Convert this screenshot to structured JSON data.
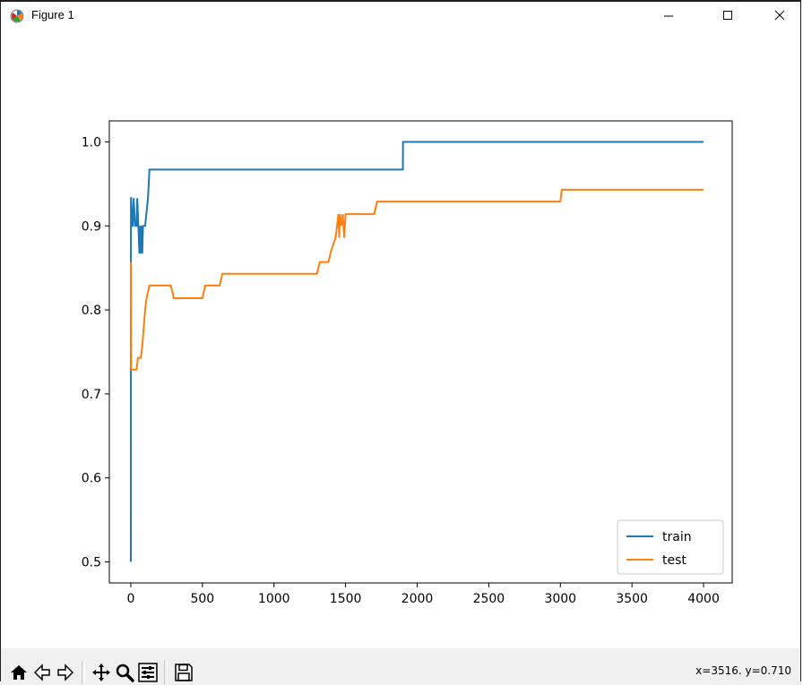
{
  "window": {
    "title": "Figure 1",
    "controls": {
      "minimize": "minimize",
      "maximize": "maximize",
      "close": "close"
    }
  },
  "toolbar": {
    "buttons": [
      "home-icon",
      "back-icon",
      "forward-icon",
      "pan-icon",
      "zoom-icon",
      "configure-subplots-icon",
      "save-icon"
    ],
    "coords_text": "x=3516. y=0.710"
  },
  "chart_data": {
    "type": "line",
    "xlim": [
      -150,
      4200
    ],
    "ylim": [
      0.475,
      1.025
    ],
    "xticks": [
      0,
      500,
      1000,
      1500,
      2000,
      2500,
      3000,
      3500,
      4000
    ],
    "yticks": [
      0.5,
      0.6,
      0.7,
      0.8,
      0.9,
      1.0
    ],
    "xtick_labels": [
      "0",
      "500",
      "1000",
      "1500",
      "2000",
      "2500",
      "3000",
      "3500",
      "4000"
    ],
    "ytick_labels": [
      "0.5",
      "0.6",
      "0.7",
      "0.8",
      "0.9",
      "1.0"
    ],
    "legend": {
      "position": "lower right"
    },
    "grid": false,
    "series": [
      {
        "name": "train",
        "color": "#1f77b4",
        "x": [
          0,
          1,
          2,
          10,
          14,
          20,
          30,
          40,
          45,
          60,
          62,
          70,
          72,
          80,
          85,
          100,
          120,
          130,
          1900,
          1901,
          4000
        ],
        "y": [
          0.5,
          0.933,
          0.933,
          0.9,
          0.9,
          0.933,
          0.9,
          0.9,
          0.933,
          0.867,
          0.9,
          0.867,
          0.9,
          0.867,
          0.9,
          0.9,
          0.933,
          0.967,
          0.967,
          1.0,
          1.0
        ]
      },
      {
        "name": "test",
        "color": "#ff7f0e",
        "x": [
          0,
          2,
          4,
          40,
          50,
          70,
          80,
          100,
          110,
          130,
          280,
          300,
          500,
          520,
          620,
          640,
          1300,
          1320,
          1380,
          1400,
          1430,
          1440,
          1450,
          1455,
          1460,
          1470,
          1480,
          1490,
          1500,
          1700,
          1720,
          3000,
          3010,
          4000
        ],
        "y": [
          0.857,
          0.729,
          0.729,
          0.729,
          0.743,
          0.743,
          0.757,
          0.8,
          0.814,
          0.829,
          0.829,
          0.814,
          0.814,
          0.829,
          0.829,
          0.843,
          0.843,
          0.857,
          0.857,
          0.871,
          0.886,
          0.9,
          0.914,
          0.886,
          0.914,
          0.9,
          0.914,
          0.886,
          0.914,
          0.914,
          0.929,
          0.929,
          0.943,
          0.943
        ]
      }
    ]
  }
}
